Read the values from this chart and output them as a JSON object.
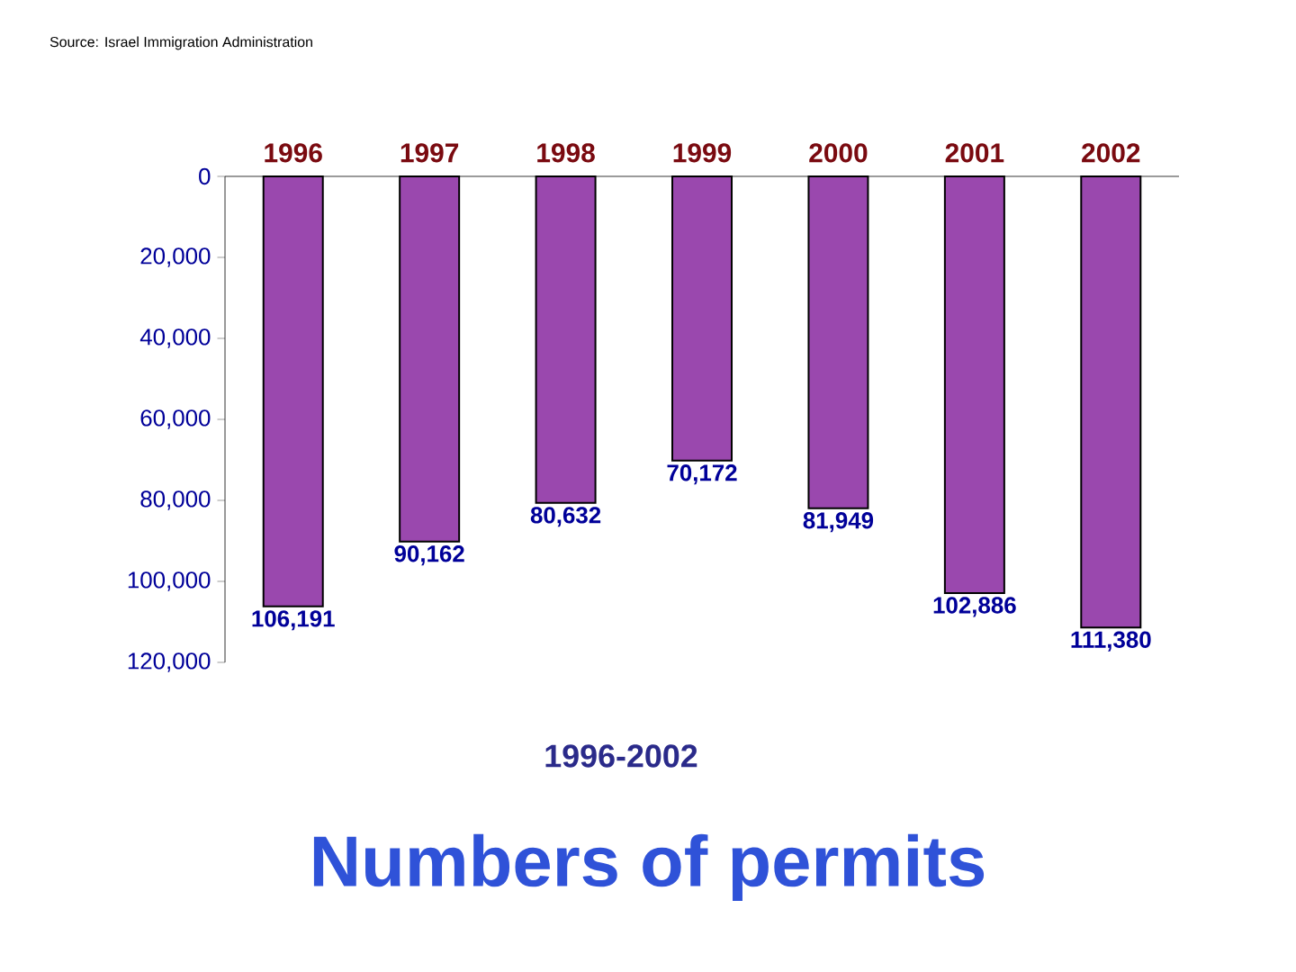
{
  "chart_data": {
    "type": "bar",
    "title": "Numbers of permits",
    "subtitle": "1996-2002",
    "annotations": [
      "Source: Israel Immigration Administration"
    ],
    "categories": [
      "1996",
      "1997",
      "1998",
      "1999",
      "2000",
      "2001",
      "2002"
    ],
    "values": [
      106191,
      90162,
      80632,
      70172,
      81949,
      102886,
      111380
    ],
    "value_labels": [
      "106,191",
      "90,162",
      "80,632",
      "70,172",
      "81,949",
      "102,886",
      "111,380"
    ],
    "color": "#9a48ae",
    "ylim": [
      120000,
      0
    ],
    "yticks": [
      {
        "value": 0,
        "label": "0"
      },
      {
        "value": 20000,
        "label": "20,000"
      },
      {
        "value": 40000,
        "label": "40,000"
      },
      {
        "value": 60000,
        "label": "60,000"
      },
      {
        "value": 80000,
        "label": "80,000"
      },
      {
        "value": 100000,
        "label": "100,000"
      },
      {
        "value": 120000,
        "label": "120,000"
      }
    ]
  }
}
